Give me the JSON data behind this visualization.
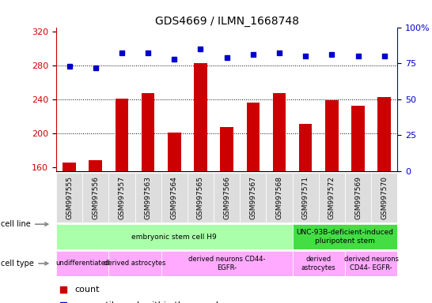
{
  "title": "GDS4669 / ILMN_1668748",
  "samples": [
    "GSM997555",
    "GSM997556",
    "GSM997557",
    "GSM997563",
    "GSM997564",
    "GSM997565",
    "GSM997566",
    "GSM997567",
    "GSM997568",
    "GSM997571",
    "GSM997572",
    "GSM997569",
    "GSM997570"
  ],
  "counts": [
    165,
    168,
    241,
    247,
    201,
    283,
    207,
    236,
    247,
    211,
    239,
    232,
    243
  ],
  "percentiles": [
    73,
    72,
    82,
    82,
    78,
    85,
    79,
    81,
    82,
    80,
    81,
    80,
    80
  ],
  "ylim_left": [
    155,
    325
  ],
  "ylim_right": [
    0,
    100
  ],
  "yticks_left": [
    160,
    200,
    240,
    280,
    320
  ],
  "yticks_right": [
    0,
    25,
    50,
    75,
    100
  ],
  "bar_color": "#cc0000",
  "dot_color": "#0000cc",
  "cell_line_data": [
    {
      "label": "embryonic stem cell H9",
      "start": 0,
      "end": 9,
      "color": "#aaffaa"
    },
    {
      "label": "UNC-93B-deficient-induced\npluripotent stem",
      "start": 9,
      "end": 13,
      "color": "#44dd44"
    }
  ],
  "cell_type_data": [
    {
      "label": "undifferentiated",
      "start": 0,
      "end": 2,
      "color": "#ffaaff"
    },
    {
      "label": "derived astrocytes",
      "start": 2,
      "end": 4,
      "color": "#ffaaff"
    },
    {
      "label": "derived neurons CD44-\nEGFR-",
      "start": 4,
      "end": 9,
      "color": "#ffaaff"
    },
    {
      "label": "derived\nastrocytes",
      "start": 9,
      "end": 11,
      "color": "#ffaaff"
    },
    {
      "label": "derived neurons\nCD44- EGFR-",
      "start": 11,
      "end": 13,
      "color": "#ffaaff"
    }
  ],
  "bar_width": 0.5,
  "figsize": [
    5.46,
    3.84
  ],
  "dpi": 100
}
